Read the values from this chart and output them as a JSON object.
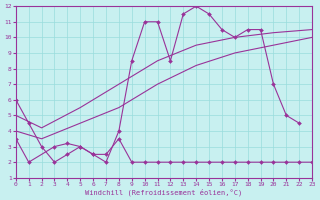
{
  "xlabel": "Windchill (Refroidissement éolien,°C)",
  "bg_color": "#c8f0f0",
  "line_color": "#993399",
  "grid_color": "#99dddd",
  "xlim": [
    0,
    23
  ],
  "ylim": [
    1,
    12
  ],
  "xticks": [
    0,
    1,
    2,
    3,
    4,
    5,
    6,
    7,
    8,
    9,
    10,
    11,
    12,
    13,
    14,
    15,
    16,
    17,
    18,
    19,
    20,
    21,
    22,
    23
  ],
  "yticks": [
    1,
    2,
    3,
    4,
    5,
    6,
    7,
    8,
    9,
    10,
    11,
    12
  ],
  "curve1_x": [
    0,
    1,
    2,
    3,
    4,
    5,
    6,
    7,
    8,
    9,
    10,
    11,
    12,
    13,
    14,
    15,
    16,
    17,
    18,
    19,
    20,
    21,
    22
  ],
  "curve1_y": [
    6.0,
    4.5,
    3.0,
    2.0,
    2.5,
    3.0,
    2.5,
    2.0,
    4.0,
    8.5,
    11.0,
    11.0,
    8.5,
    11.5,
    12.0,
    11.5,
    10.5,
    10.0,
    10.5,
    10.5,
    7.0,
    5.0,
    4.5
  ],
  "curve2_x": [
    0,
    2,
    5,
    8,
    11,
    14,
    17,
    20,
    23
  ],
  "curve2_y": [
    5.0,
    4.2,
    5.5,
    7.0,
    8.5,
    9.5,
    10.0,
    10.3,
    10.5
  ],
  "curve3_x": [
    0,
    1,
    3,
    4,
    5,
    6,
    7,
    8,
    9,
    10,
    11,
    12,
    13,
    14,
    15,
    16,
    17,
    18,
    19,
    20,
    21,
    22,
    23
  ],
  "curve3_y": [
    3.5,
    2.0,
    3.0,
    3.2,
    3.0,
    2.5,
    2.5,
    3.5,
    2.0,
    2.0,
    2.0,
    2.0,
    2.0,
    2.0,
    2.0,
    2.0,
    2.0,
    2.0,
    2.0,
    2.0,
    2.0,
    2.0,
    2.0
  ],
  "curve_lower_x": [
    0,
    2,
    5,
    8,
    11,
    14,
    17,
    20,
    23
  ],
  "curve_lower_y": [
    4.0,
    3.5,
    4.5,
    5.5,
    7.0,
    8.2,
    9.0,
    9.5,
    10.0
  ]
}
